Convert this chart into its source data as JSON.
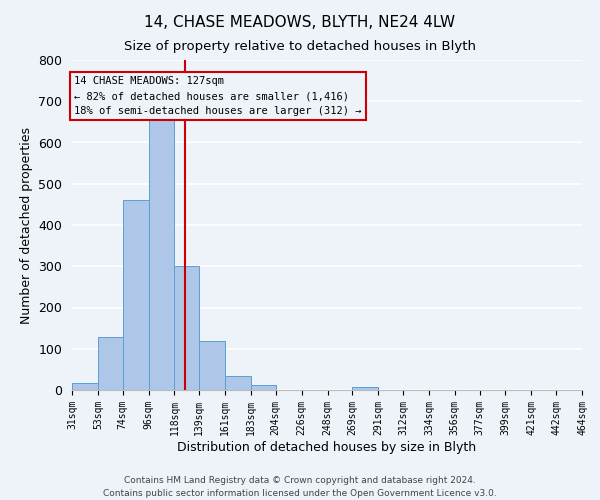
{
  "title": "14, CHASE MEADOWS, BLYTH, NE24 4LW",
  "subtitle": "Size of property relative to detached houses in Blyth",
  "xlabel": "Distribution of detached houses by size in Blyth",
  "ylabel": "Number of detached properties",
  "bin_edges": [
    31,
    53,
    74,
    96,
    118,
    139,
    161,
    183,
    204,
    226,
    248,
    269,
    291,
    312,
    334,
    356,
    377,
    399,
    421,
    442,
    464
  ],
  "bar_heights": [
    18,
    128,
    460,
    665,
    300,
    118,
    35,
    12,
    0,
    0,
    0,
    8,
    0,
    0,
    0,
    0,
    0,
    0,
    0,
    0
  ],
  "bar_color": "#aec6e8",
  "bar_edgecolor": "#5a9fd4",
  "property_size": 127,
  "vline_color": "#cc0000",
  "annotation_title": "14 CHASE MEADOWS: 127sqm",
  "annotation_line1": "← 82% of detached houses are smaller (1,416)",
  "annotation_line2": "18% of semi-detached houses are larger (312) →",
  "annotation_box_edgecolor": "#cc0000",
  "ylim": [
    0,
    800
  ],
  "yticks": [
    0,
    100,
    200,
    300,
    400,
    500,
    600,
    700,
    800
  ],
  "tick_labels": [
    "31sqm",
    "53sqm",
    "74sqm",
    "96sqm",
    "118sqm",
    "139sqm",
    "161sqm",
    "183sqm",
    "204sqm",
    "226sqm",
    "248sqm",
    "269sqm",
    "291sqm",
    "312sqm",
    "334sqm",
    "356sqm",
    "377sqm",
    "399sqm",
    "421sqm",
    "442sqm",
    "464sqm"
  ],
  "footer_line1": "Contains HM Land Registry data © Crown copyright and database right 2024.",
  "footer_line2": "Contains public sector information licensed under the Open Government Licence v3.0.",
  "bg_color": "#eef2f9",
  "grid_color": "#ffffff"
}
